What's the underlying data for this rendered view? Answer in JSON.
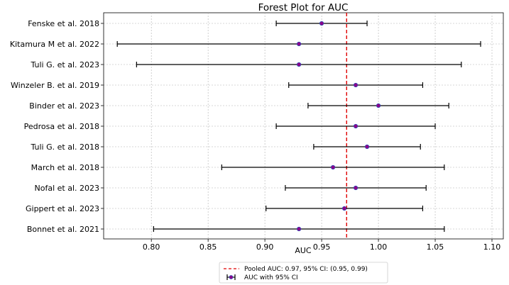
{
  "chart_data": {
    "type": "forest",
    "title": "Forest Plot for AUC",
    "xlabel": "AUC",
    "ylabel": "",
    "xlim": [
      0.758,
      1.11
    ],
    "x_ticks": [
      0.8,
      0.85,
      0.9,
      0.95,
      1.0,
      1.05,
      1.1
    ],
    "x_tick_labels": [
      "0.80",
      "0.85",
      "0.90",
      "0.95",
      "1.00",
      "1.05",
      "1.10"
    ],
    "grid": true,
    "legend_position": "bottom-center",
    "pooled": {
      "value": 0.972,
      "label": "Pooled AUC: 0.97, 95% CI: (0.95, 0.99)",
      "color": "#e00000"
    },
    "series_label": "AUC with 95% CI",
    "point_color": "#8b008b",
    "studies": [
      {
        "name": "Fenske et al. 2018",
        "auc": 0.95,
        "lower": 0.91,
        "upper": 0.99
      },
      {
        "name": "Kitamura M et al. 2022",
        "auc": 0.93,
        "lower": 0.77,
        "upper": 1.09
      },
      {
        "name": "Tuli G. et al. 2023",
        "auc": 0.93,
        "lower": 0.787,
        "upper": 1.073
      },
      {
        "name": "Winzeler B. et al. 2019",
        "auc": 0.98,
        "lower": 0.921,
        "upper": 1.039
      },
      {
        "name": "Binder et al. 2023",
        "auc": 1.0,
        "lower": 0.938,
        "upper": 1.062
      },
      {
        "name": "Pedrosa et al. 2018",
        "auc": 0.98,
        "lower": 0.91,
        "upper": 1.05
      },
      {
        "name": "Tuli G. et al. 2018",
        "auc": 0.99,
        "lower": 0.943,
        "upper": 1.037
      },
      {
        "name": "March et al. 2018",
        "auc": 0.96,
        "lower": 0.862,
        "upper": 1.058
      },
      {
        "name": "Nofal et al. 2023",
        "auc": 0.98,
        "lower": 0.918,
        "upper": 1.042
      },
      {
        "name": "Gippert et al. 2023",
        "auc": 0.97,
        "lower": 0.901,
        "upper": 1.039
      },
      {
        "name": "Bonnet et al. 2021",
        "auc": 0.93,
        "lower": 0.802,
        "upper": 1.058
      }
    ]
  }
}
